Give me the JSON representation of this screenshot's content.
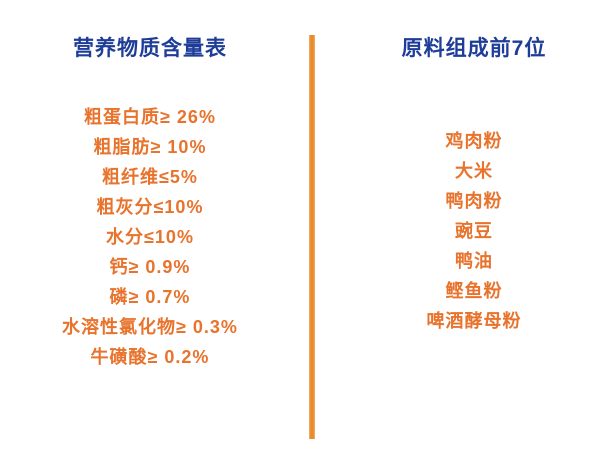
{
  "panel": {
    "left": {
      "title": "营养物质含量表",
      "items": [
        "粗蛋白质≥ 26%",
        "粗脂肪≥ 10%",
        "粗纤维≤5%",
        "粗灰分≤10%",
        "水分≤10%",
        "钙≥ 0.9%",
        "磷≥ 0.7%",
        "水溶性氯化物≥ 0.3%",
        "牛磺酸≥ 0.2%"
      ]
    },
    "right": {
      "title": "原料组成前7位",
      "items": [
        "鸡肉粉",
        "大米",
        "鸭肉粉",
        "豌豆",
        "鸭油",
        "鲣鱼粉",
        "啤酒酵母粉"
      ]
    },
    "colors": {
      "heading_blue": "#1e3d99",
      "text_orange": "#e8732c",
      "divider_orange": "#e98a2c"
    }
  }
}
